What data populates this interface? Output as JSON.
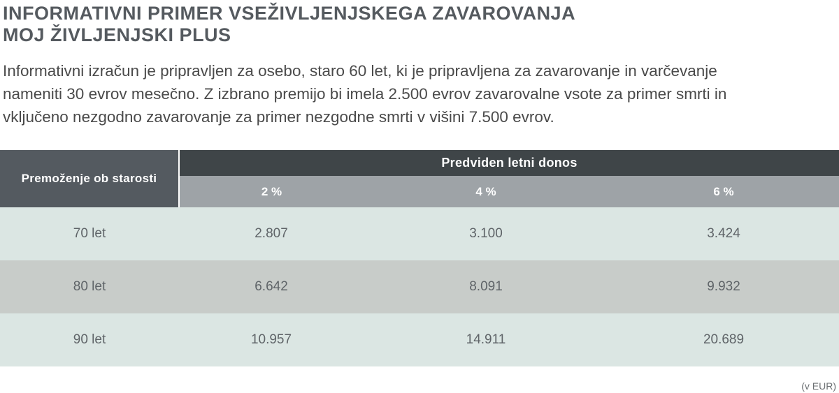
{
  "title": {
    "line1": "INFORMATIVNI PRIMER VSEŽIVLJENJSKEGA ZAVAROVANJA",
    "line2": "MOJ ŽIVLJENJSKI PLUS"
  },
  "intro": {
    "line1": "Informativni izračun je pripravljen za osebo, staro 60 let, ki je pripravljena za zavarovanje in varčevanje",
    "line2": "nameniti 30 evrov mesečno. Z izbrano premijo bi imela 2.500 evrov zavarovalne vsote za primer smrti in",
    "line3": "vključeno nezgodno zavarovanje za primer nezgodne smrti v višini 7.500 evrov."
  },
  "table": {
    "age_header": "Premoženje ob starosti",
    "group_header": "Predviden letni donos",
    "rates": [
      "2 %",
      "4 %",
      "6 %"
    ],
    "rows": [
      {
        "age": "70 let",
        "values": [
          "2.807",
          "3.100",
          "3.424"
        ]
      },
      {
        "age": "80 let",
        "values": [
          "6.642",
          "8.091",
          "9.932"
        ]
      },
      {
        "age": "90 let",
        "values": [
          "10.957",
          "14.911",
          "20.689"
        ]
      }
    ]
  },
  "unit_note": "(v EUR)",
  "colors": {
    "header_dark": "#3f4548",
    "header_mid": "#545a60",
    "header_light": "#9ea3a7",
    "row_light": "#dbe6e3",
    "row_dark": "#c8ccc9"
  }
}
